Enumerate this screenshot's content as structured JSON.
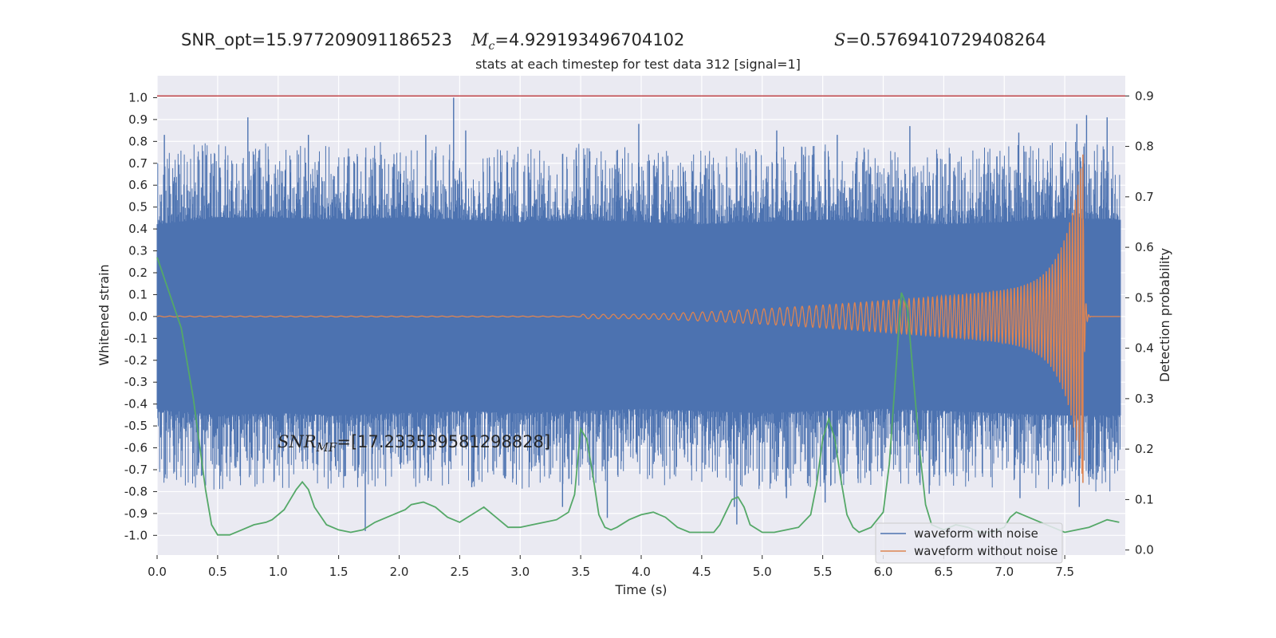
{
  "header": {
    "snr_opt": "SNR_opt=15.977209091186523",
    "mc_symbol": "M",
    "mc_sub": "c",
    "mc_value": "=4.929193496704102",
    "s_symbol": "S",
    "s_value": "=0.5769410729408264"
  },
  "chart_data": {
    "type": "line",
    "title": "stats at each timestep for test data 312 [signal=1]",
    "xlabel": "Time (s)",
    "ylabel": "Whitened strain",
    "ylabel_right": "Detection probability",
    "xlim": [
      0,
      8.0
    ],
    "ylim": [
      -1.09,
      1.1
    ],
    "ylim_right": [
      -0.01,
      0.94
    ],
    "x_ticks": [
      "0.0",
      "0.5",
      "1.0",
      "1.5",
      "2.0",
      "2.5",
      "3.0",
      "3.5",
      "4.0",
      "4.5",
      "5.0",
      "5.5",
      "6.0",
      "6.5",
      "7.0",
      "7.5"
    ],
    "y_ticks": [
      "1.0",
      "0.9",
      "0.8",
      "0.7",
      "0.6",
      "0.5",
      "0.4",
      "0.3",
      "0.2",
      "0.1",
      "0.0",
      "-0.1",
      "-0.2",
      "-0.3",
      "-0.4",
      "-0.5",
      "-0.6",
      "-0.7",
      "-0.8",
      "-0.9",
      "-1.0"
    ],
    "y_ticks_right": [
      "0.9",
      "0.8",
      "0.7",
      "0.6",
      "0.5",
      "0.4",
      "0.3",
      "0.2",
      "0.1",
      "0.0"
    ],
    "grid": true,
    "legend_position": "lower-right",
    "annotation": {
      "symbol": "SNR",
      "sub": "MF",
      "value": "=[17.233539581298828]",
      "x": 1.0,
      "y": -0.57
    },
    "threshold": {
      "axis": "right",
      "value": 0.9,
      "color": "#c44e52"
    },
    "series": [
      {
        "name": "waveform with noise",
        "axis": "left",
        "color": "#4c72b0",
        "envelope": {
          "x": [
            0,
            0.5,
            1.0,
            1.5,
            2.0,
            2.5,
            3.0,
            3.5,
            4.0,
            4.5,
            5.0,
            5.5,
            6.0,
            6.5,
            7.0,
            7.5,
            7.95
          ],
          "upper_core": [
            0.42,
            0.45,
            0.45,
            0.44,
            0.45,
            0.44,
            0.43,
            0.44,
            0.43,
            0.42,
            0.43,
            0.44,
            0.43,
            0.42,
            0.43,
            0.45,
            0.44
          ],
          "lower_core": [
            -0.42,
            -0.45,
            -0.44,
            -0.45,
            -0.44,
            -0.43,
            -0.44,
            -0.43,
            -0.42,
            -0.43,
            -0.44,
            -0.43,
            -0.42,
            -0.43,
            -0.44,
            -0.45,
            -0.45
          ]
        },
        "spikes": [
          [
            0.06,
            0.83
          ],
          [
            0.75,
            0.91
          ],
          [
            1.25,
            0.83
          ],
          [
            2.22,
            0.83
          ],
          [
            2.45,
            1.0
          ],
          [
            2.55,
            0.85
          ],
          [
            3.98,
            0.88
          ],
          [
            5.12,
            0.85
          ],
          [
            5.62,
            0.83
          ],
          [
            6.22,
            0.87
          ],
          [
            7.12,
            0.84
          ],
          [
            7.6,
            0.88
          ],
          [
            7.68,
            0.92
          ],
          [
            7.85,
            0.91
          ],
          [
            1.72,
            -0.98
          ],
          [
            1.55,
            -0.73
          ],
          [
            2.6,
            -0.78
          ],
          [
            2.88,
            -0.73
          ],
          [
            3.35,
            -0.87
          ],
          [
            3.72,
            -0.92
          ],
          [
            4.77,
            -0.87
          ],
          [
            4.79,
            -0.95
          ],
          [
            5.2,
            -0.83
          ],
          [
            5.52,
            -0.85
          ],
          [
            6.38,
            -0.81
          ],
          [
            7.13,
            -0.83
          ],
          [
            7.62,
            -0.87
          ]
        ]
      },
      {
        "name": "waveform without noise",
        "axis": "left",
        "color": "#dd8452",
        "chirp": {
          "coalescence_time": 7.65,
          "peak_amplitude": 0.74,
          "min_amplitude": -0.76,
          "start_visible": 3.9,
          "freq_at_start": 12.0,
          "freq_at_end": 45.0
        }
      },
      {
        "name": "Detection probability",
        "axis": "right",
        "color": "#55a868",
        "x": [
          0.0,
          0.1,
          0.2,
          0.3,
          0.4,
          0.45,
          0.5,
          0.6,
          0.7,
          0.8,
          0.9,
          0.95,
          1.0,
          1.05,
          1.1,
          1.15,
          1.2,
          1.25,
          1.3,
          1.4,
          1.5,
          1.6,
          1.7,
          1.8,
          1.9,
          2.0,
          2.05,
          2.1,
          2.2,
          2.3,
          2.4,
          2.5,
          2.6,
          2.7,
          2.8,
          2.9,
          3.0,
          3.1,
          3.2,
          3.3,
          3.4,
          3.45,
          3.5,
          3.55,
          3.6,
          3.65,
          3.7,
          3.75,
          3.8,
          3.9,
          4.0,
          4.1,
          4.2,
          4.3,
          4.4,
          4.5,
          4.6,
          4.65,
          4.7,
          4.75,
          4.8,
          4.85,
          4.9,
          5.0,
          5.1,
          5.2,
          5.3,
          5.4,
          5.45,
          5.5,
          5.55,
          5.6,
          5.65,
          5.7,
          5.75,
          5.8,
          5.9,
          6.0,
          6.05,
          6.1,
          6.15,
          6.2,
          6.3,
          6.35,
          6.4,
          6.5,
          6.6,
          6.7,
          6.8,
          6.9,
          7.0,
          7.05,
          7.1,
          7.2,
          7.3,
          7.4,
          7.5,
          7.6,
          7.7,
          7.8,
          7.85,
          7.95
        ],
        "values": [
          0.58,
          0.51,
          0.44,
          0.3,
          0.12,
          0.05,
          0.03,
          0.03,
          0.04,
          0.05,
          0.055,
          0.06,
          0.07,
          0.08,
          0.1,
          0.12,
          0.135,
          0.12,
          0.085,
          0.05,
          0.04,
          0.035,
          0.04,
          0.055,
          0.065,
          0.075,
          0.08,
          0.09,
          0.095,
          0.085,
          0.065,
          0.055,
          0.07,
          0.085,
          0.065,
          0.045,
          0.045,
          0.05,
          0.055,
          0.06,
          0.075,
          0.11,
          0.24,
          0.22,
          0.15,
          0.07,
          0.045,
          0.04,
          0.045,
          0.06,
          0.07,
          0.075,
          0.065,
          0.045,
          0.035,
          0.035,
          0.035,
          0.05,
          0.075,
          0.1,
          0.105,
          0.085,
          0.05,
          0.035,
          0.035,
          0.04,
          0.045,
          0.07,
          0.13,
          0.22,
          0.26,
          0.22,
          0.14,
          0.07,
          0.045,
          0.035,
          0.045,
          0.075,
          0.17,
          0.34,
          0.51,
          0.48,
          0.2,
          0.09,
          0.05,
          0.04,
          0.05,
          0.045,
          0.035,
          0.035,
          0.045,
          0.065,
          0.075,
          0.065,
          0.055,
          0.045,
          0.035,
          0.04,
          0.045,
          0.055,
          0.06,
          0.055
        ]
      }
    ]
  }
}
